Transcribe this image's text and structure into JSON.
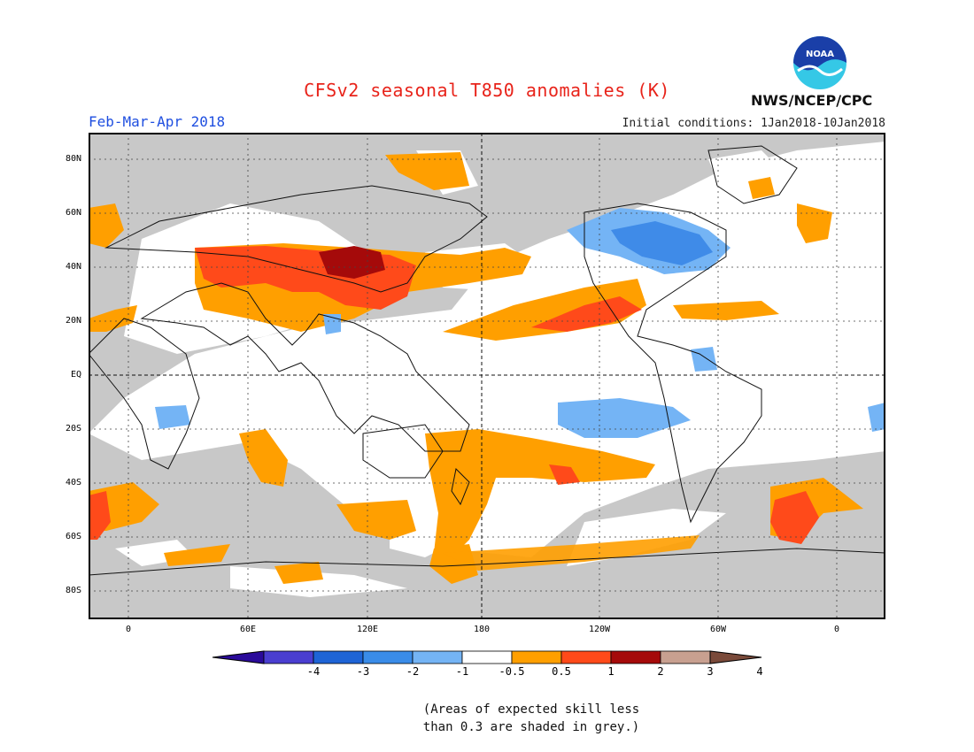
{
  "header": {
    "title": "CFSv2 seasonal T850 anomalies (K)",
    "period": "Feb-Mar-Apr 2018",
    "initial_conditions": "Initial conditions: 1Jan2018-10Jan2018",
    "agency": "NWS/NCEP/CPC",
    "logo_text": "NOAA"
  },
  "colors": {
    "title": "#e8231a",
    "period": "#1f4fe0",
    "ocean_grey": "#c8c8c8",
    "white": "#ffffff",
    "orange": "#ff9f00",
    "red_orange": "#ff4a1a",
    "dark_red": "#a50a0a",
    "light_blue": "#74b4f5",
    "mid_blue": "#3f8be8",
    "logo_blue": "#1a3fa8",
    "logo_cyan": "#35c8e6"
  },
  "axes": {
    "lat_labels": [
      "80N",
      "60N",
      "40N",
      "20N",
      "EQ",
      "20S",
      "40S",
      "60S",
      "80S"
    ],
    "lon_labels": [
      "0",
      "60E",
      "120E",
      "180",
      "120W",
      "60W",
      "0"
    ]
  },
  "colorbar": {
    "labels": [
      "-4",
      "-3",
      "-2",
      "-1",
      "-0.5",
      "0.5",
      "1",
      "2",
      "3",
      "4"
    ],
    "colors": [
      "#2a0a9a",
      "#4a3ed0",
      "#1e64d6",
      "#3a8ce8",
      "#74b4f5",
      "#ffffff",
      "#ff9f00",
      "#ff4a1a",
      "#a50a0a",
      "#c8a090",
      "#7a4a3a"
    ]
  },
  "note": {
    "line1": "(Areas of expected skill less",
    "line2": "than 0.3 are shaded in grey.)"
  }
}
